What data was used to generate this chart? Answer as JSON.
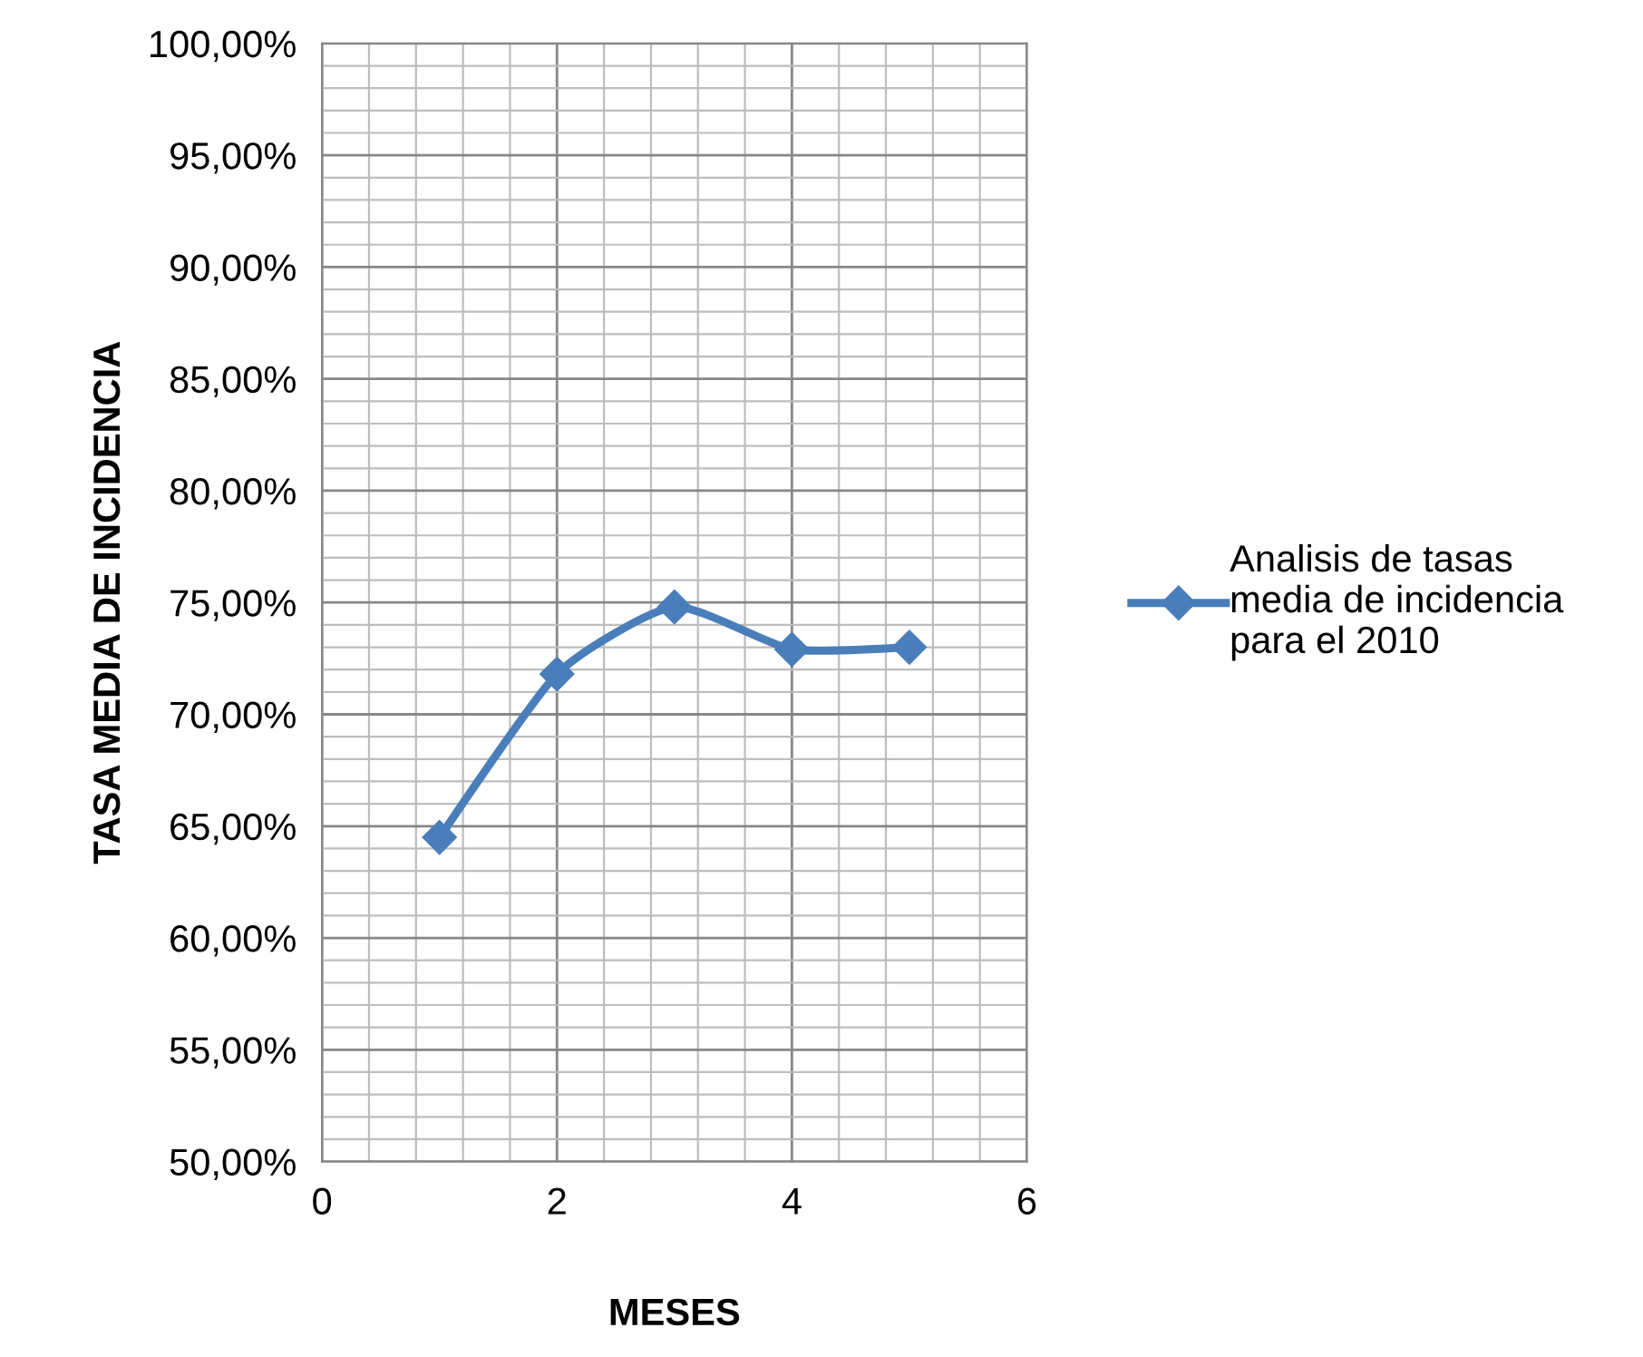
{
  "chart_data": {
    "type": "line",
    "xlabel": "MESES",
    "ylabel": "TASA MEDIA DE INCIDENCIA",
    "x": [
      1,
      2,
      3,
      4,
      5
    ],
    "series": [
      {
        "name": "Analisis de tasas\nmedia de incidencia\npara el 2010",
        "color": "#4a7ebb",
        "values": [
          64.5,
          71.8,
          74.8,
          72.9,
          73.0
        ]
      }
    ],
    "xlim": [
      0,
      6
    ],
    "xticks": [
      0,
      2,
      4,
      6
    ],
    "ylim": [
      50,
      100
    ],
    "yticks": [
      {
        "value": 50,
        "label": "50,00%"
      },
      {
        "value": 55,
        "label": "55,00%"
      },
      {
        "value": 60,
        "label": "60,00%"
      },
      {
        "value": 65,
        "label": "65,00%"
      },
      {
        "value": 70,
        "label": "70,00%"
      },
      {
        "value": 75,
        "label": "75,00%"
      },
      {
        "value": 80,
        "label": "80,00%"
      },
      {
        "value": 85,
        "label": "85,00%"
      },
      {
        "value": 90,
        "label": "90,00%"
      },
      {
        "value": 95,
        "label": "95,00%"
      },
      {
        "value": 100,
        "label": "100,00%"
      }
    ],
    "grid": true,
    "legend": "right",
    "marker": "diamond",
    "line_style": "solid"
  }
}
